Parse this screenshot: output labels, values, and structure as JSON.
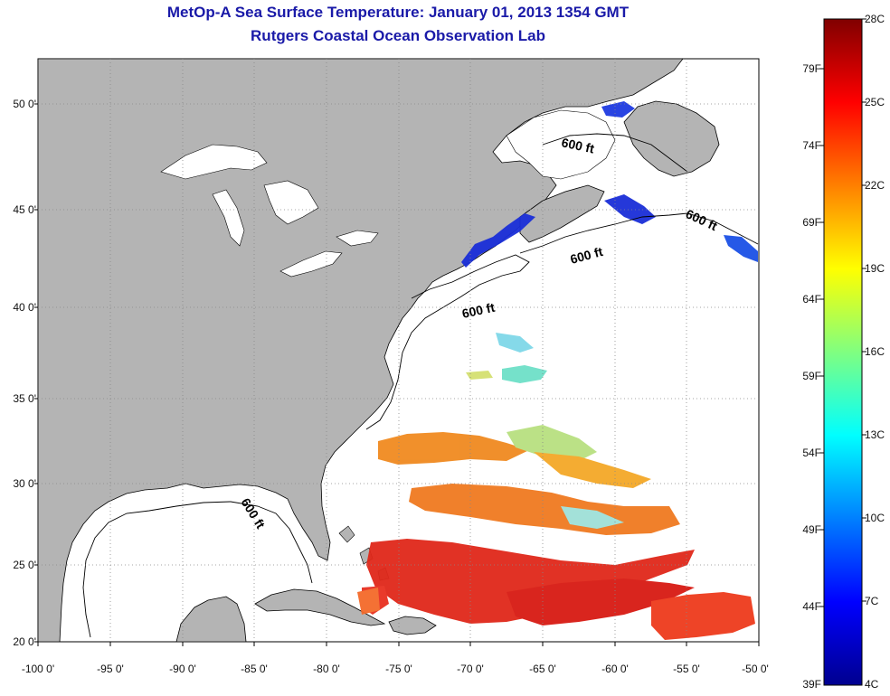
{
  "title": "MetOp-A Sea Surface Temperature:  January 01, 2013 1354 GMT",
  "subtitle": "Rutgers Coastal Ocean Observation Lab",
  "lat_labels": [
    "50 0'",
    "45 0'",
    "40 0'",
    "35 0'",
    "30 0'",
    "25 0'",
    "20 0'"
  ],
  "lon_labels": [
    "-100 0'",
    "-95 0'",
    "-90 0'",
    "-85 0'",
    "-80 0'",
    "-75 0'",
    "-70 0'",
    "-65 0'",
    "-60 0'",
    "-55 0'",
    "-50 0'"
  ],
  "contour_labels": [
    "600 ft",
    "600 ft",
    "600 ft",
    "600 ft",
    "600 ft"
  ],
  "colorbar": {
    "fahrenheit": [
      "79F",
      "74F",
      "69F",
      "64F",
      "59F",
      "54F",
      "49F",
      "44F",
      "39F"
    ],
    "celsius": [
      "28C",
      "25C",
      "22C",
      "19C",
      "16C",
      "13C",
      "10C",
      "7C",
      "4C"
    ],
    "min_c": 4,
    "max_c": 28
  },
  "colors": {
    "title": "#1a1aa8",
    "land": "#b4b4b4",
    "ocean": "#ffffff",
    "grid": "#888888"
  }
}
